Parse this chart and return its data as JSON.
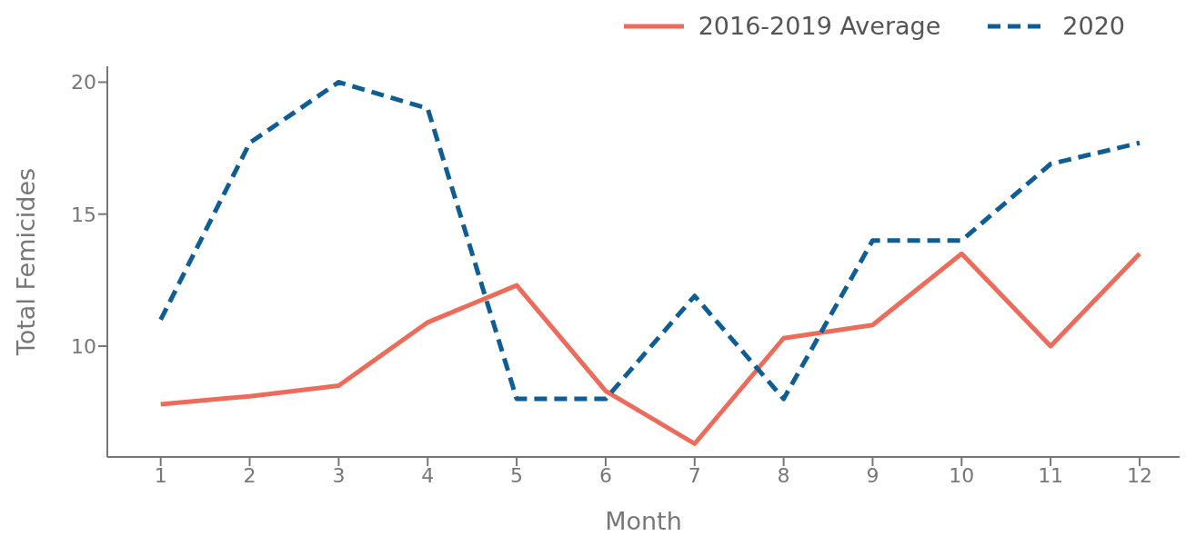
{
  "chart_data": {
    "type": "line",
    "xlabel": "Month",
    "ylabel": "Total Femicides",
    "x": [
      1,
      2,
      3,
      4,
      5,
      6,
      7,
      8,
      9,
      10,
      11,
      12
    ],
    "xlim": [
      0.4,
      12.45
    ],
    "xticks": [
      1,
      2,
      3,
      4,
      5,
      6,
      7,
      8,
      9,
      10,
      11,
      12
    ],
    "ylim": [
      5.8,
      20.6
    ],
    "yticks": [
      10,
      15,
      20
    ],
    "legend": "top right",
    "grid": false,
    "marker": "none",
    "series": [
      {
        "name": "2016-2019 Average",
        "color": "#ec6b5a",
        "line_style": "solid",
        "values": [
          7.8,
          8.1,
          8.5,
          10.9,
          12.3,
          8.3,
          6.3,
          10.3,
          10.8,
          13.5,
          10,
          13.5
        ]
      },
      {
        "name": "2020",
        "color": "#0e5d94",
        "line_style": "dashed",
        "values": [
          11,
          17.7,
          20,
          19,
          8,
          8,
          11.9,
          8,
          14,
          14,
          16.9,
          17.7
        ]
      }
    ]
  }
}
